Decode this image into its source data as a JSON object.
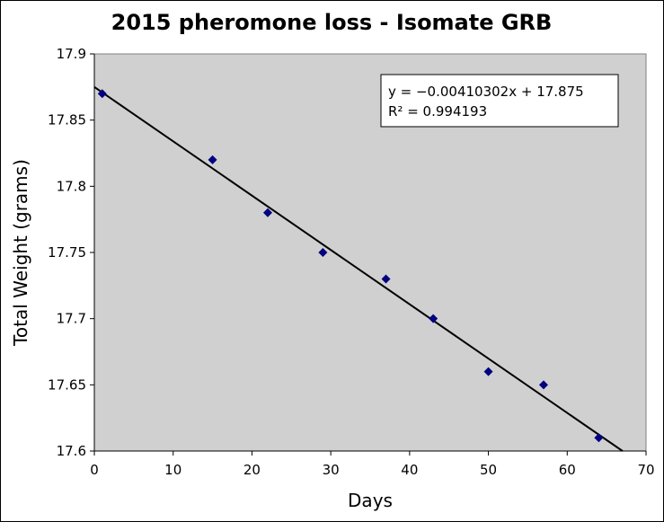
{
  "chart_data": {
    "type": "scatter",
    "title": "2015 pheromone loss - Isomate GRB",
    "xlabel": "Days",
    "ylabel": "Total Weight (grams)",
    "xlim": [
      0,
      70
    ],
    "ylim": [
      17.6,
      17.9
    ],
    "x_ticks": [
      "0",
      "10",
      "20",
      "30",
      "40",
      "50",
      "60",
      "70"
    ],
    "y_ticks": [
      "17.6",
      "17.65",
      "17.7",
      "17.75",
      "17.8",
      "17.85",
      "17.9"
    ],
    "grid": false,
    "legend": "none",
    "plot_background": "#d0d0d0",
    "marker_color": "#000080",
    "series": [
      {
        "x": [
          1,
          15,
          22,
          29,
          37,
          43,
          50,
          57,
          64
        ],
        "y": [
          17.87,
          17.82,
          17.78,
          17.75,
          17.73,
          17.7,
          17.66,
          17.65,
          17.61
        ]
      }
    ],
    "trendline": {
      "slope": -0.00410302,
      "intercept": 17.875,
      "equation": "y = −0.00410302x + 17.875",
      "r_squared": "R² = 0.994193",
      "position": "top-right"
    }
  }
}
